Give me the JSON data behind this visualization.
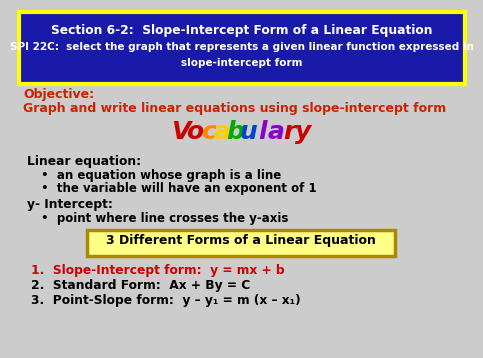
{
  "bg_color": "#cccccc",
  "header_bg": "#1a1aaa",
  "header_border": "#ffff00",
  "header_text1": "Section 6-2:  Slope-Intercept Form of a Linear Equation",
  "header_text2": "SPI 22C:  select the graph that represents a given linear function expressed in",
  "header_text3": "slope-intercept form",
  "objective_label": "Objective:",
  "objective_text": "Graph and write linear equations using slope-intercept form",
  "objective_color": "#cc2200",
  "vocab_letters": [
    "V",
    "o",
    "c",
    "a",
    "b",
    "u",
    "l",
    "a",
    "r",
    "y"
  ],
  "vocab_colors": [
    "#cc0000",
    "#cc0000",
    "#ff8800",
    "#ffcc00",
    "#00aa00",
    "#0044cc",
    "#8800cc",
    "#8800cc",
    "#cc0000",
    "#cc0000"
  ],
  "linear_eq_label": "Linear equation:",
  "bullet1": "an equation whose graph is a line",
  "bullet2": "the variable will have an exponent of 1",
  "y_intercept_label": "y- Intercept:",
  "bullet3": "point where line crosses the y-axis",
  "box_text": "3 Different Forms of a Linear Equation",
  "box_bg": "#ffff88",
  "box_border": "#aa8800",
  "item1_prefix": "1.  Slope-Intercept form:  y = mx + b",
  "item2": "2.  Standard Form:  Ax + By = C",
  "item3": "3.  Point-Slope form:  y – y₁ = m (x – x₁)",
  "item1_color": "#cc0000",
  "item23_color": "#000000"
}
